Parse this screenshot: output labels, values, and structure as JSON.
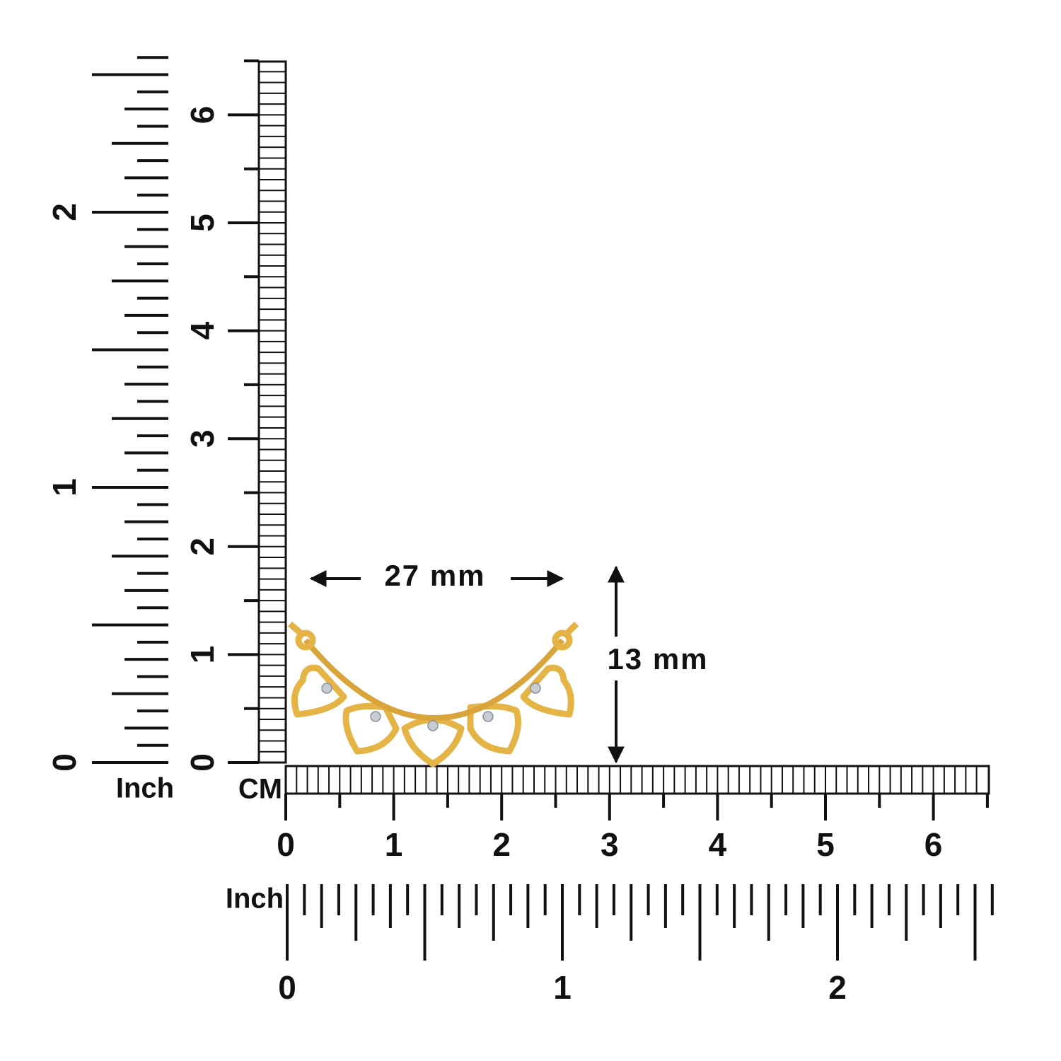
{
  "left_inch_ruler": {
    "unit": "Inch",
    "labels": [
      0,
      1,
      2
    ]
  },
  "vertical_cm_ruler": {
    "labels": [
      0,
      1,
      2,
      3,
      4,
      5,
      6
    ]
  },
  "horizontal_cm_ruler": {
    "unit": "CM",
    "labels": [
      0,
      1,
      2,
      3,
      4,
      5,
      6
    ]
  },
  "bottom_inch_ruler": {
    "unit": "Inch",
    "labels": [
      0,
      1,
      2
    ]
  },
  "dimensions": {
    "width": "27 mm",
    "height": "13 mm"
  }
}
